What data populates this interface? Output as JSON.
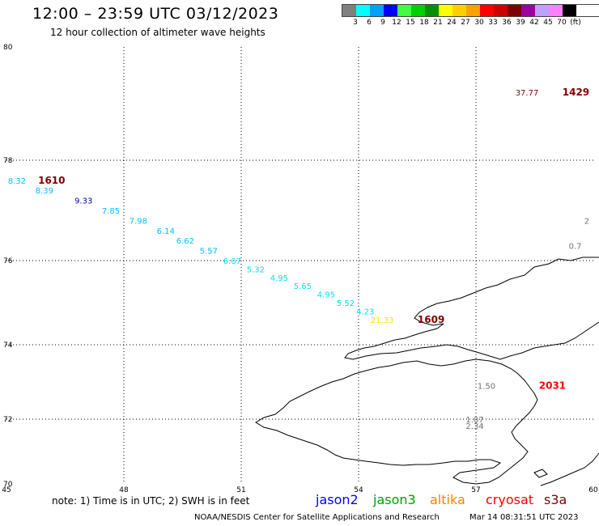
{
  "header": {
    "title": "12:00 – 23:59 UTC 03/12/2023",
    "subtitle": "12 hour collection of altimeter wave heights"
  },
  "scale": {
    "colors": [
      "#808080",
      "#00ffff",
      "#00a0ff",
      "#0000ff",
      "#40ff40",
      "#00d000",
      "#009000",
      "#ffff00",
      "#ffd000",
      "#ffa000",
      "#ff0000",
      "#d00000",
      "#800000",
      "#a000a0",
      "#c0a0ff",
      "#ff80ff",
      "#000000"
    ],
    "labels": [
      "3",
      "6",
      "9",
      "12",
      "15",
      "18",
      "21",
      "24",
      "27",
      "30",
      "33",
      "36",
      "39",
      "42",
      "45",
      "70",
      "(ft)"
    ]
  },
  "axes": {
    "lat_labels": [
      "80",
      "78",
      "76",
      "74",
      "72",
      "70"
    ],
    "lon_labels": [
      "45",
      "48",
      "51",
      "54",
      "57",
      "60"
    ]
  },
  "observations": [
    {
      "lon": 45.5,
      "lat": 77.6,
      "text": "8.32",
      "color": "#00c0ff"
    },
    {
      "lon": 46.2,
      "lat": 77.4,
      "text": "8.39",
      "color": "#00c0ff"
    },
    {
      "lon": 47.2,
      "lat": 77.2,
      "text": "9.33",
      "color": "#0000c0"
    },
    {
      "lon": 47.9,
      "lat": 77.0,
      "text": "7.85",
      "color": "#00c0ff"
    },
    {
      "lon": 48.6,
      "lat": 76.8,
      "text": "7.98",
      "color": "#00c0ff"
    },
    {
      "lon": 49.3,
      "lat": 76.6,
      "text": "6.14",
      "color": "#00c0ff"
    },
    {
      "lon": 49.8,
      "lat": 76.4,
      "text": "6.62",
      "color": "#00c0ff"
    },
    {
      "lon": 50.4,
      "lat": 76.2,
      "text": "5.57",
      "color": "#00c0ff"
    },
    {
      "lon": 51.0,
      "lat": 76.0,
      "text": "6.07",
      "color": "#00e0ff"
    },
    {
      "lon": 51.6,
      "lat": 75.8,
      "text": "5.32",
      "color": "#00e0ff"
    },
    {
      "lon": 52.2,
      "lat": 75.6,
      "text": "4.95",
      "color": "#00e0ff"
    },
    {
      "lon": 52.8,
      "lat": 75.4,
      "text": "5.65",
      "color": "#00e0ff"
    },
    {
      "lon": 53.4,
      "lat": 75.2,
      "text": "4.95",
      "color": "#00e0ff"
    },
    {
      "lon": 53.9,
      "lat": 75.0,
      "text": "5.52",
      "color": "#00e0ff"
    },
    {
      "lon": 54.4,
      "lat": 74.8,
      "text": "4.23",
      "color": "#00e0ff"
    },
    {
      "lon": 54.9,
      "lat": 74.6,
      "text": "21.33",
      "color": "#ffe000"
    },
    {
      "lon": 57.5,
      "lat": 72.9,
      "text": "1.50",
      "color": "#707070"
    },
    {
      "lon": 57.2,
      "lat": 72.0,
      "text": "1.07",
      "color": "#707070"
    },
    {
      "lon": 57.2,
      "lat": 71.8,
      "text": "2.34",
      "color": "#707070"
    },
    {
      "lon": 59.7,
      "lat": 76.3,
      "text": "0.7",
      "color": "#707070"
    },
    {
      "lon": 59.9,
      "lat": 76.8,
      "text": "2",
      "color": "#707070"
    },
    {
      "lon": 58.6,
      "lat": 79.2,
      "text": "37.77",
      "color": "#800000"
    }
  ],
  "pass_times": [
    {
      "lon": 46.5,
      "lat": 77.6,
      "text": "1610",
      "color": "#800000"
    },
    {
      "lon": 56.2,
      "lat": 74.6,
      "text": "1609",
      "color": "#800000"
    },
    {
      "lon": 59.3,
      "lat": 72.9,
      "text": "2031",
      "color": "#ff0000"
    },
    {
      "lon": 59.9,
      "lat": 79.2,
      "text": "1429",
      "color": "#800000"
    }
  ],
  "footer": {
    "note": "note: 1) Time is in UTC; 2) SWH is in feet",
    "satellites": [
      {
        "name": "jason2",
        "color": "#0000ff"
      },
      {
        "name": "jason3",
        "color": "#00a000"
      },
      {
        "name": "altika",
        "color": "#ff8000"
      },
      {
        "name": "cryosat",
        "color": "#ff0000"
      },
      {
        "name": "s3a",
        "color": "#800000"
      }
    ],
    "credit": "NOAA/NESDIS Center for Satellite Applications and Research",
    "timestamp": "Mar 14 08:31:51 UTC 2023"
  }
}
